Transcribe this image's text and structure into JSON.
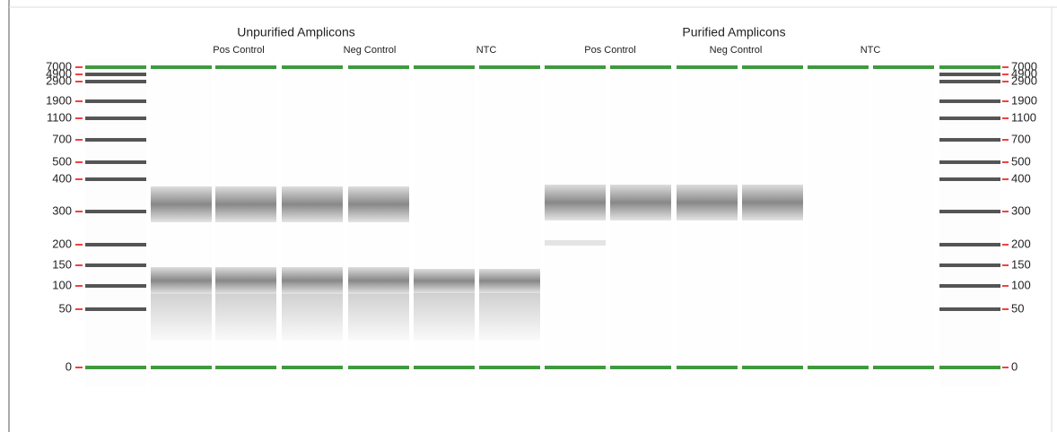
{
  "groups": [
    {
      "title": "Unpurified Amplicons",
      "labels": [
        "Pos Control",
        "Neg Control",
        "NTC"
      ]
    },
    {
      "title": "Purified Amplicons",
      "labels": [
        "Pos Control",
        "Neg Control",
        "NTC"
      ]
    }
  ],
  "ladder": [
    "7000",
    "4900",
    "2900",
    "1900",
    "1100",
    "700",
    "500",
    "400",
    "300",
    "200",
    "150",
    "100",
    "50",
    "0"
  ]
}
